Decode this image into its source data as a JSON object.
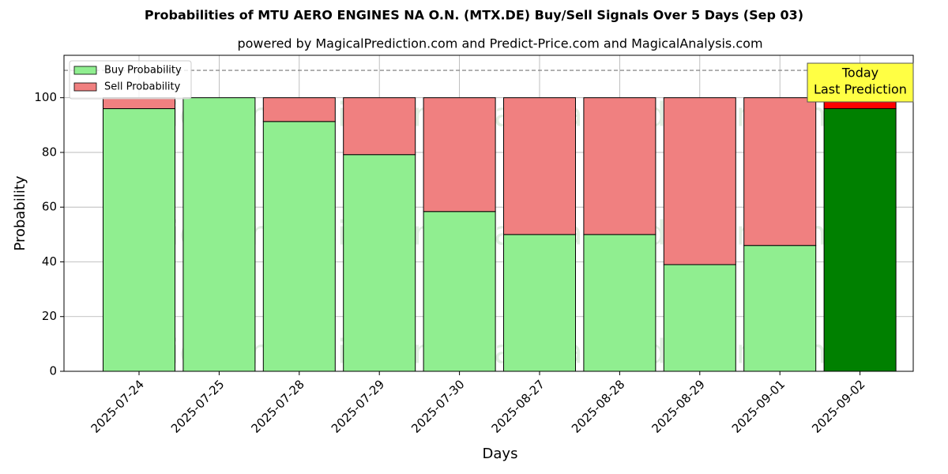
{
  "chart_data": {
    "type": "stacked_bar",
    "title": "Probabilities of MTU AERO ENGINES NA O.N. (MTX.DE) Buy/Sell Signals Over 5 Days (Sep 03)",
    "subtitle": "powered by MagicalPrediction.com and Predict-Price.com and MagicalAnalysis.com",
    "x_label": "Days",
    "y_label": "Probability",
    "categories": [
      "2025-07-24",
      "2025-07-25",
      "2025-07-28",
      "2025-07-29",
      "2025-07-30",
      "2025-08-27",
      "2025-08-28",
      "2025-08-29",
      "2025-09-01",
      "2025-09-02"
    ],
    "series": [
      {
        "name": "Buy Probability",
        "color": "#90ee90",
        "values": [
          96.0,
          100,
          91.3,
          79.2,
          58.4,
          50.0,
          50.0,
          39.0,
          46.0,
          96.0
        ],
        "colors": [
          "#90ee90",
          "#90ee90",
          "#90ee90",
          "#90ee90",
          "#90ee90",
          "#90ee90",
          "#90ee90",
          "#90ee90",
          "#90ee90",
          "#008000"
        ]
      },
      {
        "name": "Sell Probability",
        "color": "#f08080",
        "values": [
          4.0,
          0,
          8.7,
          20.8,
          41.6,
          50.0,
          50.0,
          61.0,
          54.0,
          4.0
        ],
        "colors": [
          "#f08080",
          "#f08080",
          "#f08080",
          "#f08080",
          "#f08080",
          "#f08080",
          "#f08080",
          "#f08080",
          "#f08080",
          "#ff0000"
        ]
      }
    ],
    "ylim": [
      0,
      115.5
    ],
    "yticks": [
      0,
      20,
      40,
      60,
      80,
      100
    ],
    "grid": true,
    "reference_line": 110,
    "legend": "upper left",
    "annotation": [
      "Today",
      "Last Prediction"
    ],
    "watermarks": [
      "MagicalAnalysis.com",
      "MagicalPrediction.com"
    ]
  }
}
